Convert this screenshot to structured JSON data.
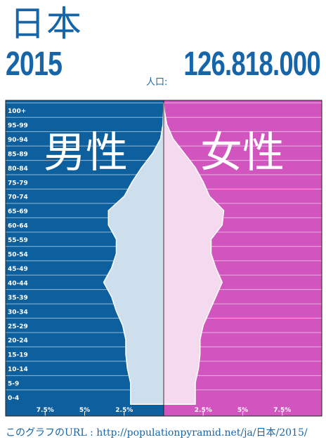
{
  "header": {
    "country": "日本",
    "year": "2015",
    "population_label": "人口:",
    "population_value": "126.818.000"
  },
  "legend": {
    "male": "男性",
    "female": "女性"
  },
  "footer": {
    "text": "このグラフのURL : http://populationpyramid.net/ja/日本/2015/"
  },
  "colors": {
    "male_bg": "#0d5f9e",
    "female_bg": "#d154bf",
    "male_fill": "#cddfec",
    "female_fill": "#f4d9ef",
    "title_blue": "#1565a8"
  },
  "chart_data": {
    "type": "bar",
    "title": "",
    "xlabel": "",
    "ylabel": "",
    "xlim": [
      -10,
      10
    ],
    "x_ticks": [
      {
        "value": -7.5,
        "label": "7.5%"
      },
      {
        "value": -5,
        "label": "5%"
      },
      {
        "value": -2.5,
        "label": "2.5%"
      },
      {
        "value": 2.5,
        "label": "2.5%"
      },
      {
        "value": 5,
        "label": "5%"
      },
      {
        "value": 7.5,
        "label": "7.5%"
      }
    ],
    "categories": [
      "0-4",
      "5-9",
      "10-14",
      "15-19",
      "20-24",
      "25-29",
      "30-34",
      "35-39",
      "40-44",
      "45-49",
      "50-54",
      "55-59",
      "60-64",
      "65-69",
      "70-74",
      "75-79",
      "80-84",
      "85-89",
      "90-94",
      "95-99",
      "100+"
    ],
    "series": [
      {
        "name": "男性",
        "values": [
          2.1,
          2.1,
          2.3,
          2.4,
          2.4,
          2.6,
          3.0,
          3.3,
          3.8,
          3.3,
          3.0,
          3.0,
          3.5,
          3.5,
          2.5,
          2.0,
          1.4,
          0.7,
          0.2,
          0.05,
          0.01
        ]
      },
      {
        "name": "女性",
        "values": [
          2.0,
          2.0,
          2.2,
          2.3,
          2.3,
          2.5,
          2.9,
          3.3,
          3.7,
          3.3,
          3.0,
          3.0,
          3.7,
          3.8,
          2.9,
          2.5,
          2.0,
          1.3,
          0.6,
          0.2,
          0.04
        ]
      }
    ],
    "grid": true
  }
}
